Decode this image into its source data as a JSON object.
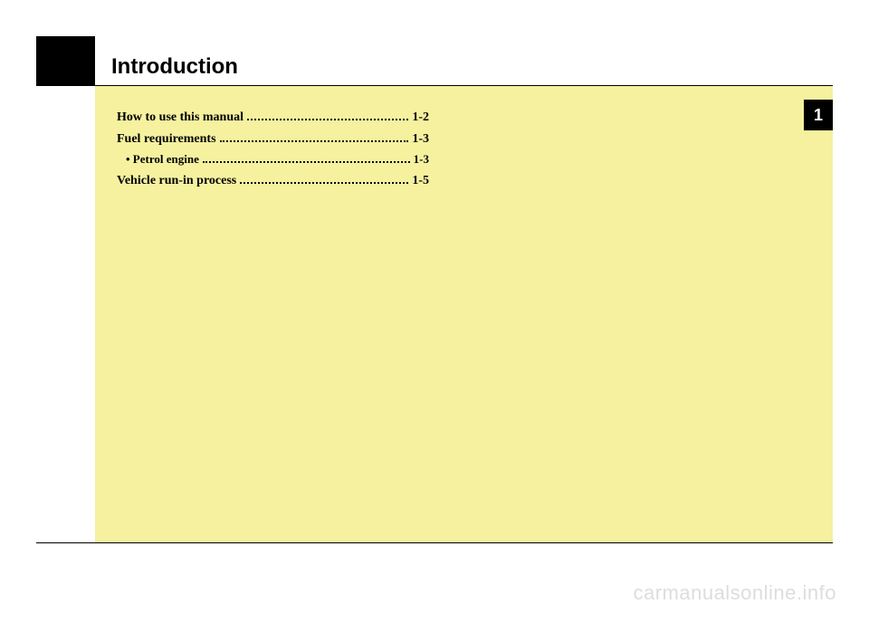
{
  "page": {
    "title": "Introduction",
    "chapter_number": "1",
    "watermark": "carmanualsonline.info"
  },
  "colors": {
    "yellow_panel": "#f5f19f",
    "black": "#000000",
    "white": "#ffffff",
    "watermark": "#dddddd"
  },
  "toc": {
    "items": [
      {
        "label": "How to use this manual",
        "page": "1-2",
        "sub": false
      },
      {
        "label": "Fuel requirements",
        "page": "1-3",
        "sub": false
      },
      {
        "label": "• Petrol engine",
        "page": "1-3",
        "sub": true
      },
      {
        "label": "Vehicle run-in process",
        "page": "1-5",
        "sub": false
      }
    ]
  }
}
